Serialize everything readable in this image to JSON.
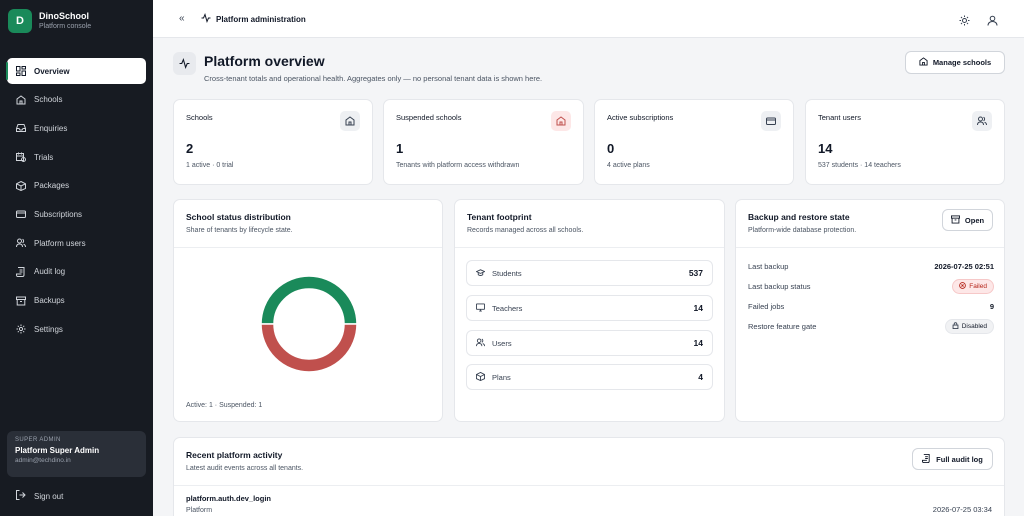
{
  "brand": {
    "initial": "D",
    "name": "DinoSchool",
    "subtitle": "Platform console"
  },
  "sidebar": {
    "items": [
      {
        "label": "Overview",
        "icon": "grid-icon",
        "active": true
      },
      {
        "label": "Schools",
        "icon": "school-icon"
      },
      {
        "label": "Enquiries",
        "icon": "inbox-icon"
      },
      {
        "label": "Trials",
        "icon": "calendar-clock-icon"
      },
      {
        "label": "Packages",
        "icon": "package-icon"
      },
      {
        "label": "Subscriptions",
        "icon": "credit-card-icon"
      },
      {
        "label": "Platform users",
        "icon": "users-icon"
      },
      {
        "label": "Audit log",
        "icon": "scroll-icon"
      },
      {
        "label": "Backups",
        "icon": "archive-icon"
      },
      {
        "label": "Settings",
        "icon": "gear-icon"
      }
    ],
    "admin": {
      "role": "SUPER ADMIN",
      "name": "Platform Super Admin",
      "email": "admin@techdino.in"
    },
    "signout_label": "Sign out"
  },
  "topbar": {
    "collapse_glyph": "«",
    "breadcrumb": "Platform administration"
  },
  "header": {
    "title": "Platform overview",
    "subtitle": "Cross-tenant totals and operational health. Aggregates only — no personal tenant data is shown here.",
    "manage_label": "Manage schools"
  },
  "stats": [
    {
      "label": "Schools",
      "value": "2",
      "sub": "1 active · 0 trial"
    },
    {
      "label": "Suspended schools",
      "value": "1",
      "sub": "Tenants with platform access withdrawn"
    },
    {
      "label": "Active subscriptions",
      "value": "0",
      "sub": "4 active plans"
    },
    {
      "label": "Tenant users",
      "value": "14",
      "sub": "537 students · 14 teachers"
    }
  ],
  "distribution": {
    "title": "School status distribution",
    "subtitle": "Share of tenants by lifecycle state.",
    "footer": "Active: 1 · Suspended: 1"
  },
  "chart_data": {
    "type": "pie",
    "categories": [
      "Active",
      "Suspended"
    ],
    "values": [
      1,
      1
    ],
    "colors": [
      "#1a8a5a",
      "#c0504d"
    ]
  },
  "footprint": {
    "title": "Tenant footprint",
    "subtitle": "Records managed across all schools.",
    "rows": [
      {
        "label": "Students",
        "value": "537",
        "icon": "graduation-cap-icon"
      },
      {
        "label": "Teachers",
        "value": "14",
        "icon": "monitor-icon"
      },
      {
        "label": "Users",
        "value": "14",
        "icon": "users-icon"
      },
      {
        "label": "Plans",
        "value": "4",
        "icon": "package-icon"
      }
    ]
  },
  "backup": {
    "title": "Backup and restore state",
    "subtitle": "Platform-wide database protection.",
    "open_label": "Open",
    "last_backup_label": "Last backup",
    "last_backup_value": "2026-07-25 02:51",
    "status_label": "Last backup status",
    "status_value": "Failed",
    "failed_jobs_label": "Failed jobs",
    "failed_jobs_value": "9",
    "gate_label": "Restore feature gate",
    "gate_value": "Disabled"
  },
  "activity": {
    "title": "Recent platform activity",
    "subtitle": "Latest audit events across all tenants.",
    "button_label": "Full audit log",
    "items": [
      {
        "name": "platform.auth.dev_login",
        "tenant": "Platform",
        "time": "2026-07-25 03:34"
      }
    ]
  },
  "colors": {
    "accent": "#1a8a5a",
    "danger": "#c0504d",
    "sidebar_bg": "#171b22"
  }
}
